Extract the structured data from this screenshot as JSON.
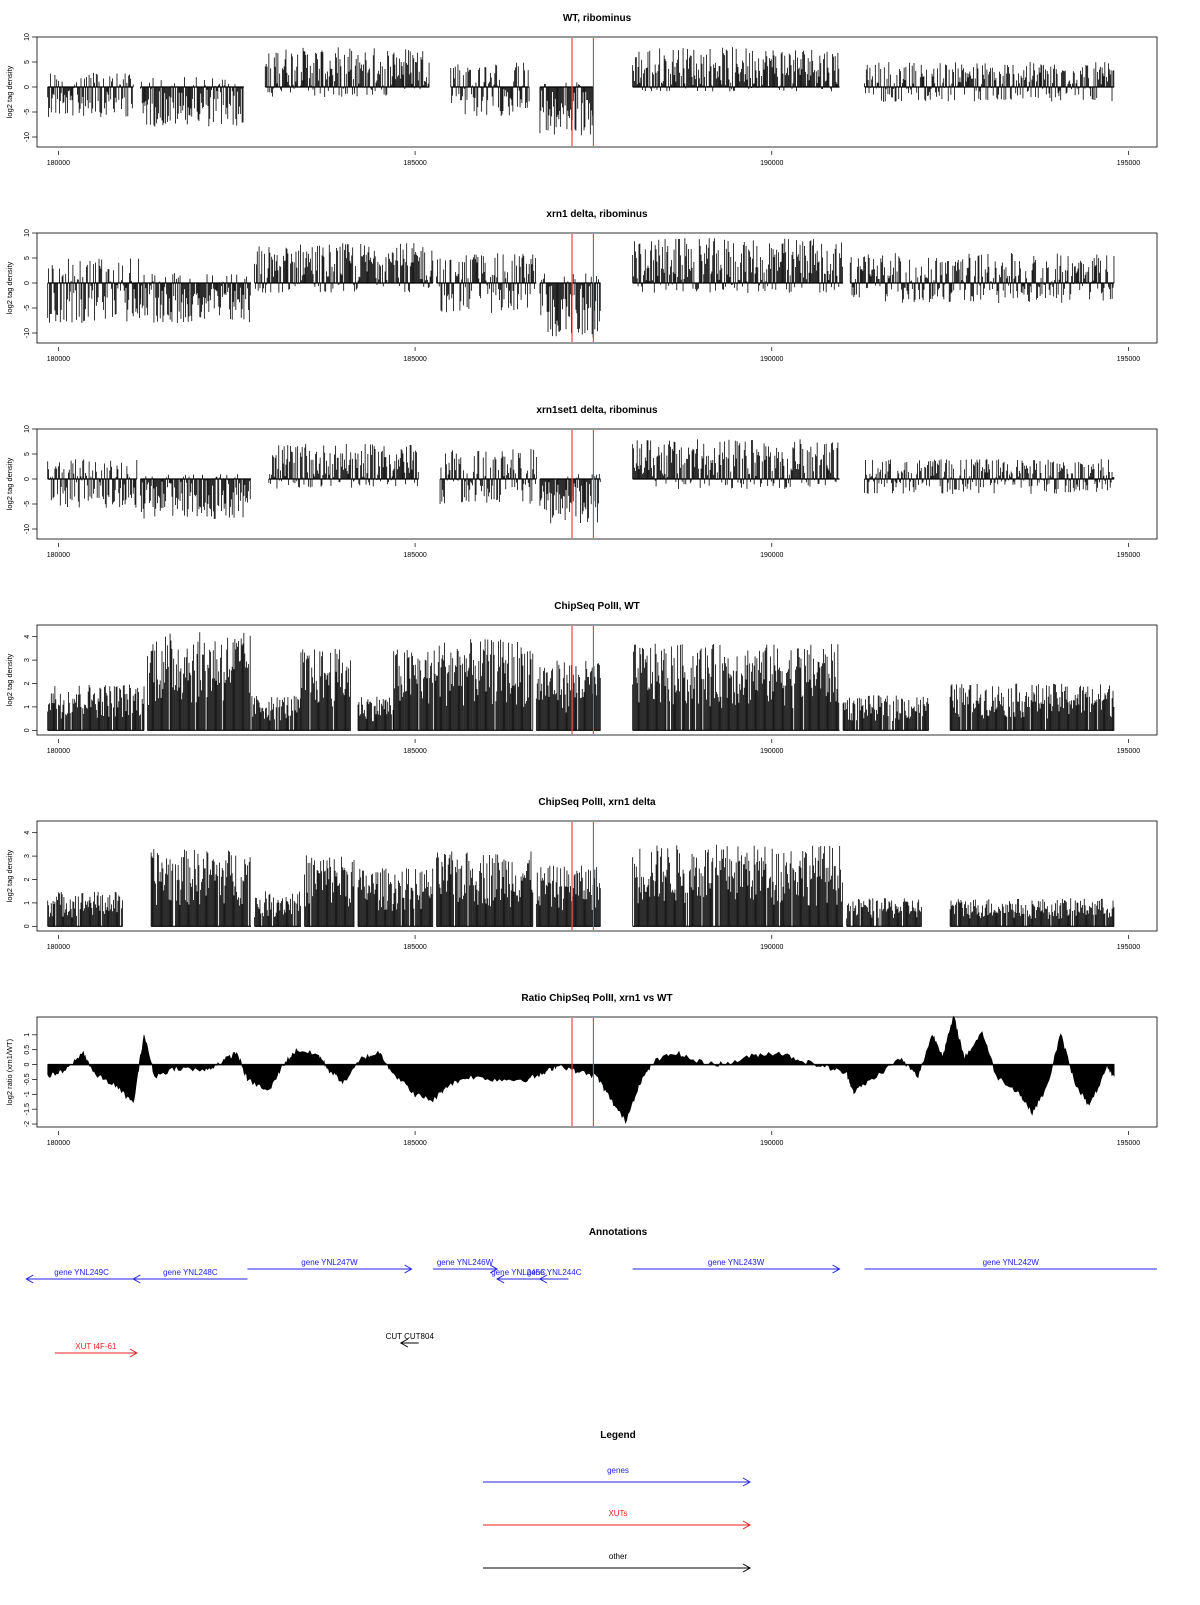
{
  "colors": {
    "signal": "#000000",
    "marker": "#ff4040",
    "gene": "#2020ee",
    "xut": "#ee2020",
    "other": "#000000",
    "frame": "#000000"
  },
  "chart_data": [
    {
      "type": "bar",
      "title": "WT, ribominus",
      "ylabel": "log2 tag density",
      "xlim": [
        179700,
        195400
      ],
      "ylim": [
        -12,
        10
      ],
      "yticks": [
        10,
        5,
        0,
        -5,
        -10
      ],
      "xticks": [
        180000,
        185000,
        190000,
        195000
      ],
      "markers_x": [
        187200,
        187500
      ],
      "segments": [
        {
          "x": [
            179850,
            181050
          ],
          "range": [
            -6,
            3
          ]
        },
        {
          "x": [
            181150,
            182600
          ],
          "range": [
            -8,
            2
          ]
        },
        {
          "x": [
            182900,
            185200
          ],
          "range": [
            -2,
            8
          ]
        },
        {
          "x": [
            185500,
            186600
          ],
          "range": [
            -6,
            5
          ]
        },
        {
          "x": [
            186750,
            187500
          ],
          "range": [
            -10,
            1
          ]
        },
        {
          "x": [
            188050,
            190950
          ],
          "range": [
            -1,
            8
          ]
        },
        {
          "x": [
            191300,
            194800
          ],
          "range": [
            -3,
            5
          ]
        }
      ]
    },
    {
      "type": "bar",
      "title": "xrn1 delta, ribominus",
      "ylabel": "log2 tag density",
      "xlim": [
        179700,
        195400
      ],
      "ylim": [
        -12,
        10
      ],
      "yticks": [
        10,
        5,
        0,
        -5,
        -10
      ],
      "xticks": [
        180000,
        185000,
        190000,
        195000
      ],
      "markers_x": [
        187200,
        187500
      ],
      "segments": [
        {
          "x": [
            179850,
            181150
          ],
          "range": [
            -8,
            5
          ]
        },
        {
          "x": [
            181150,
            182700
          ],
          "range": [
            -8,
            2
          ]
        },
        {
          "x": [
            182750,
            185250
          ],
          "range": [
            -2,
            8
          ]
        },
        {
          "x": [
            185300,
            186700
          ],
          "range": [
            -6,
            6
          ]
        },
        {
          "x": [
            186750,
            187600
          ],
          "range": [
            -11,
            2
          ]
        },
        {
          "x": [
            188050,
            191000
          ],
          "range": [
            -2,
            9
          ]
        },
        {
          "x": [
            191100,
            194800
          ],
          "range": [
            -4,
            6
          ]
        }
      ]
    },
    {
      "type": "bar",
      "title": "xrn1set1 delta, ribominus",
      "ylabel": "log2 tag density",
      "xlim": [
        179700,
        195400
      ],
      "ylim": [
        -12,
        10
      ],
      "yticks": [
        10,
        5,
        0,
        -5,
        -10
      ],
      "xticks": [
        180000,
        185000,
        190000,
        195000
      ],
      "markers_x": [
        187200,
        187500
      ],
      "segments": [
        {
          "x": [
            179850,
            181100
          ],
          "range": [
            -6,
            4
          ]
        },
        {
          "x": [
            181150,
            182700
          ],
          "range": [
            -8,
            1
          ]
        },
        {
          "x": [
            182950,
            185050
          ],
          "range": [
            -2,
            7
          ]
        },
        {
          "x": [
            185350,
            186700
          ],
          "range": [
            -5,
            6
          ]
        },
        {
          "x": [
            186750,
            187600
          ],
          "range": [
            -9,
            1
          ]
        },
        {
          "x": [
            188050,
            190950
          ],
          "range": [
            -2,
            8
          ]
        },
        {
          "x": [
            191300,
            194800
          ],
          "range": [
            -3,
            4
          ]
        }
      ]
    },
    {
      "type": "bar",
      "title": "ChipSeq PolII, WT",
      "ylabel": "log2 tag density",
      "xlim": [
        179700,
        195400
      ],
      "ylim": [
        -0.2,
        4.5
      ],
      "yticks": [
        4,
        3,
        2,
        1,
        0
      ],
      "xticks": [
        180000,
        185000,
        190000,
        195000
      ],
      "markers_x": [
        187200,
        187500
      ],
      "segments": [
        {
          "x": [
            179850,
            181200
          ],
          "range": [
            0,
            2
          ]
        },
        {
          "x": [
            181250,
            182700
          ],
          "range": [
            0,
            4.2
          ]
        },
        {
          "x": [
            182700,
            183400
          ],
          "range": [
            0,
            1.5
          ]
        },
        {
          "x": [
            183400,
            184100
          ],
          "range": [
            0,
            3.5
          ]
        },
        {
          "x": [
            184200,
            184700
          ],
          "range": [
            0,
            1.5
          ]
        },
        {
          "x": [
            184700,
            185300
          ],
          "range": [
            0,
            3.5
          ]
        },
        {
          "x": [
            185300,
            186650
          ],
          "range": [
            0,
            3.9
          ]
        },
        {
          "x": [
            186700,
            187600
          ],
          "range": [
            0,
            3
          ]
        },
        {
          "x": [
            188050,
            190950
          ],
          "range": [
            0,
            3.7
          ]
        },
        {
          "x": [
            191000,
            192200
          ],
          "range": [
            0,
            1.5
          ]
        },
        {
          "x": [
            192500,
            194800
          ],
          "range": [
            0,
            2
          ]
        }
      ]
    },
    {
      "type": "bar",
      "title": "ChipSeq PolII, xrn1 delta",
      "ylabel": "log2 tag density",
      "xlim": [
        179700,
        195400
      ],
      "ylim": [
        -0.2,
        4.5
      ],
      "yticks": [
        4,
        3,
        2,
        1,
        0
      ],
      "xticks": [
        180000,
        185000,
        190000,
        195000
      ],
      "markers_x": [
        187200,
        187500
      ],
      "segments": [
        {
          "x": [
            179850,
            180900
          ],
          "range": [
            0,
            1.5
          ]
        },
        {
          "x": [
            181300,
            182700
          ],
          "range": [
            0,
            3.3
          ]
        },
        {
          "x": [
            182750,
            183400
          ],
          "range": [
            0,
            1.5
          ]
        },
        {
          "x": [
            183450,
            184150
          ],
          "range": [
            0,
            3.1
          ]
        },
        {
          "x": [
            184200,
            185250
          ],
          "range": [
            0,
            2.5
          ]
        },
        {
          "x": [
            185300,
            186650
          ],
          "range": [
            0,
            3.2
          ]
        },
        {
          "x": [
            186700,
            187600
          ],
          "range": [
            0,
            2.6
          ]
        },
        {
          "x": [
            188050,
            191000
          ],
          "range": [
            0,
            3.5
          ]
        },
        {
          "x": [
            191050,
            192100
          ],
          "range": [
            0,
            1.2
          ]
        },
        {
          "x": [
            192500,
            194800
          ],
          "range": [
            0,
            1.2
          ]
        }
      ]
    },
    {
      "type": "area",
      "title": "Ratio ChipSeq PolII, xrn1 vs WT",
      "ylabel": "log2 ratio (xrn1/WT)",
      "xlim": [
        179700,
        195400
      ],
      "ylim": [
        -2.1,
        1.6
      ],
      "yticks": [
        1.0,
        0.5,
        0.0,
        -0.5,
        -1.0,
        -1.5,
        -2.0
      ],
      "xticks": [
        180000,
        185000,
        190000,
        195000
      ],
      "markers_x": [
        187200,
        187500
      ],
      "points": [
        [
          179850,
          -0.4
        ],
        [
          180100,
          -0.2
        ],
        [
          180350,
          0.4
        ],
        [
          180500,
          -0.3
        ],
        [
          180800,
          -0.7
        ],
        [
          181050,
          -1.3
        ],
        [
          181200,
          1.0
        ],
        [
          181350,
          -0.4
        ],
        [
          181650,
          -0.1
        ],
        [
          182050,
          -0.2
        ],
        [
          182300,
          0.1
        ],
        [
          182500,
          0.4
        ],
        [
          182650,
          -0.5
        ],
        [
          182950,
          -0.9
        ],
        [
          183150,
          0.0
        ],
        [
          183350,
          0.5
        ],
        [
          183650,
          0.3
        ],
        [
          183800,
          -0.2
        ],
        [
          184000,
          -0.6
        ],
        [
          184250,
          0.2
        ],
        [
          184500,
          0.4
        ],
        [
          184700,
          -0.3
        ],
        [
          185000,
          -1.0
        ],
        [
          185250,
          -1.2
        ],
        [
          185450,
          -0.7
        ],
        [
          185750,
          -0.4
        ],
        [
          186150,
          -0.5
        ],
        [
          186550,
          -0.5
        ],
        [
          186800,
          -0.3
        ],
        [
          187000,
          0.0
        ],
        [
          187250,
          -0.2
        ],
        [
          187550,
          -0.4
        ],
        [
          187750,
          -1.2
        ],
        [
          187950,
          -1.9
        ],
        [
          188150,
          -0.6
        ],
        [
          188350,
          0.1
        ],
        [
          188650,
          0.4
        ],
        [
          188950,
          0.1
        ],
        [
          189350,
          0.0
        ],
        [
          189750,
          0.3
        ],
        [
          190100,
          0.4
        ],
        [
          190450,
          0.1
        ],
        [
          190800,
          -0.1
        ],
        [
          191050,
          -0.3
        ],
        [
          191150,
          -0.9
        ],
        [
          191400,
          -0.5
        ],
        [
          191800,
          0.2
        ],
        [
          192050,
          -0.4
        ],
        [
          192250,
          1.0
        ],
        [
          192400,
          0.3
        ],
        [
          192550,
          1.6
        ],
        [
          192700,
          0.2
        ],
        [
          192950,
          1.1
        ],
        [
          193150,
          -0.4
        ],
        [
          193450,
          -0.9
        ],
        [
          193650,
          -1.6
        ],
        [
          193850,
          -0.8
        ],
        [
          194050,
          1.0
        ],
        [
          194250,
          -0.6
        ],
        [
          194450,
          -1.4
        ],
        [
          194700,
          -0.1
        ],
        [
          194800,
          -0.4
        ]
      ]
    }
  ],
  "annotations": {
    "title": "Annotations",
    "xlim": [
      179700,
      195400
    ],
    "features": [
      {
        "label": "gene YNL249C",
        "x": [
          179550,
          181100
        ],
        "strand": "-",
        "kind": "gene",
        "row": 2
      },
      {
        "label": "gene YNL248C",
        "x": [
          181050,
          182650
        ],
        "strand": "-",
        "kind": "gene",
        "row": 2
      },
      {
        "label": "gene YNL247W",
        "x": [
          182650,
          184950
        ],
        "strand": "+",
        "kind": "gene",
        "row": 1
      },
      {
        "label": "gene YNL246W",
        "x": [
          185250,
          186150
        ],
        "strand": "+",
        "kind": "gene",
        "row": 1
      },
      {
        "label": "gene YNL245C",
        "x": [
          186150,
          186750
        ],
        "strand": "-",
        "kind": "gene",
        "row": 2
      },
      {
        "label": "gene YNL244C",
        "x": [
          186750,
          187150
        ],
        "strand": "-",
        "kind": "gene",
        "row": 2
      },
      {
        "label": "gene YNL243W",
        "x": [
          188050,
          190950
        ],
        "strand": "+",
        "kind": "gene",
        "row": 1
      },
      {
        "label": "gene YNL242W",
        "x": [
          191300,
          195400
        ],
        "strand": "none",
        "kind": "gene",
        "row": 1
      },
      {
        "label": "CUT CUT804",
        "x": [
          184800,
          185050
        ],
        "strand": "-",
        "kind": "other",
        "row": 3
      },
      {
        "label": "XUT t4F-61",
        "x": [
          179950,
          181100
        ],
        "strand": "+",
        "kind": "xut",
        "row": 4
      }
    ]
  },
  "legend": {
    "title": "Legend",
    "items": [
      {
        "label": "genes",
        "kind": "gene"
      },
      {
        "label": "XUTs",
        "kind": "xut"
      },
      {
        "label": "other",
        "kind": "other"
      }
    ]
  }
}
